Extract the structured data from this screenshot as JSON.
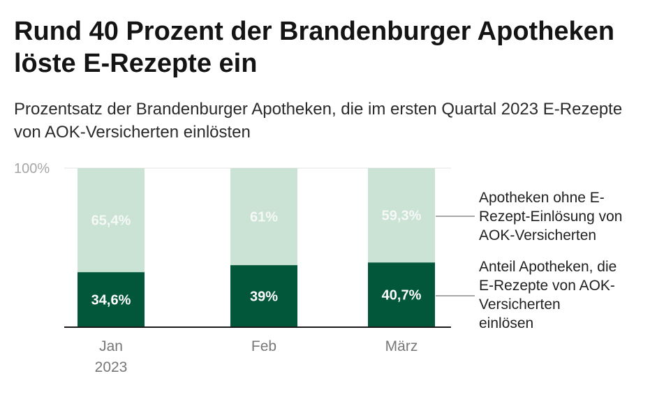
{
  "header": {
    "title": "Rund 40 Prozent der Brandenburger Apotheken löste E-Rezepte ein",
    "subtitle": "Prozentsatz der Brandenburger Apotheken, die im ersten Quartal 2023 E-Rezepte von AOK-Versicherten einlösten"
  },
  "chart_data": {
    "type": "bar",
    "stacked": true,
    "categories": [
      [
        "Jan",
        "2023"
      ],
      [
        "Feb"
      ],
      [
        "März"
      ]
    ],
    "ylim": [
      0,
      100
    ],
    "yticks": [
      {
        "value": 100,
        "label": "100%"
      }
    ],
    "series": [
      {
        "name": [
          "Anteil Apotheken, die",
          "E-Rezepte von AOK-",
          "Versicherten",
          "einlösen"
        ],
        "values": [
          34.6,
          39,
          40.7
        ],
        "labels": [
          "34,6%",
          "39%",
          "40,7%"
        ],
        "color": "#02573a",
        "label_color": "#ffffff"
      },
      {
        "name": [
          "Apotheken ohne E-",
          "Rezept-Einlösung von",
          "AOK-Versicherten"
        ],
        "values": [
          65.4,
          61,
          59.3
        ],
        "labels": [
          "65,4%",
          "61%",
          "59,3%"
        ],
        "color": "#cbe3d5",
        "label_color": "#f5f8f6"
      }
    ],
    "legend": "right",
    "grid": false
  }
}
